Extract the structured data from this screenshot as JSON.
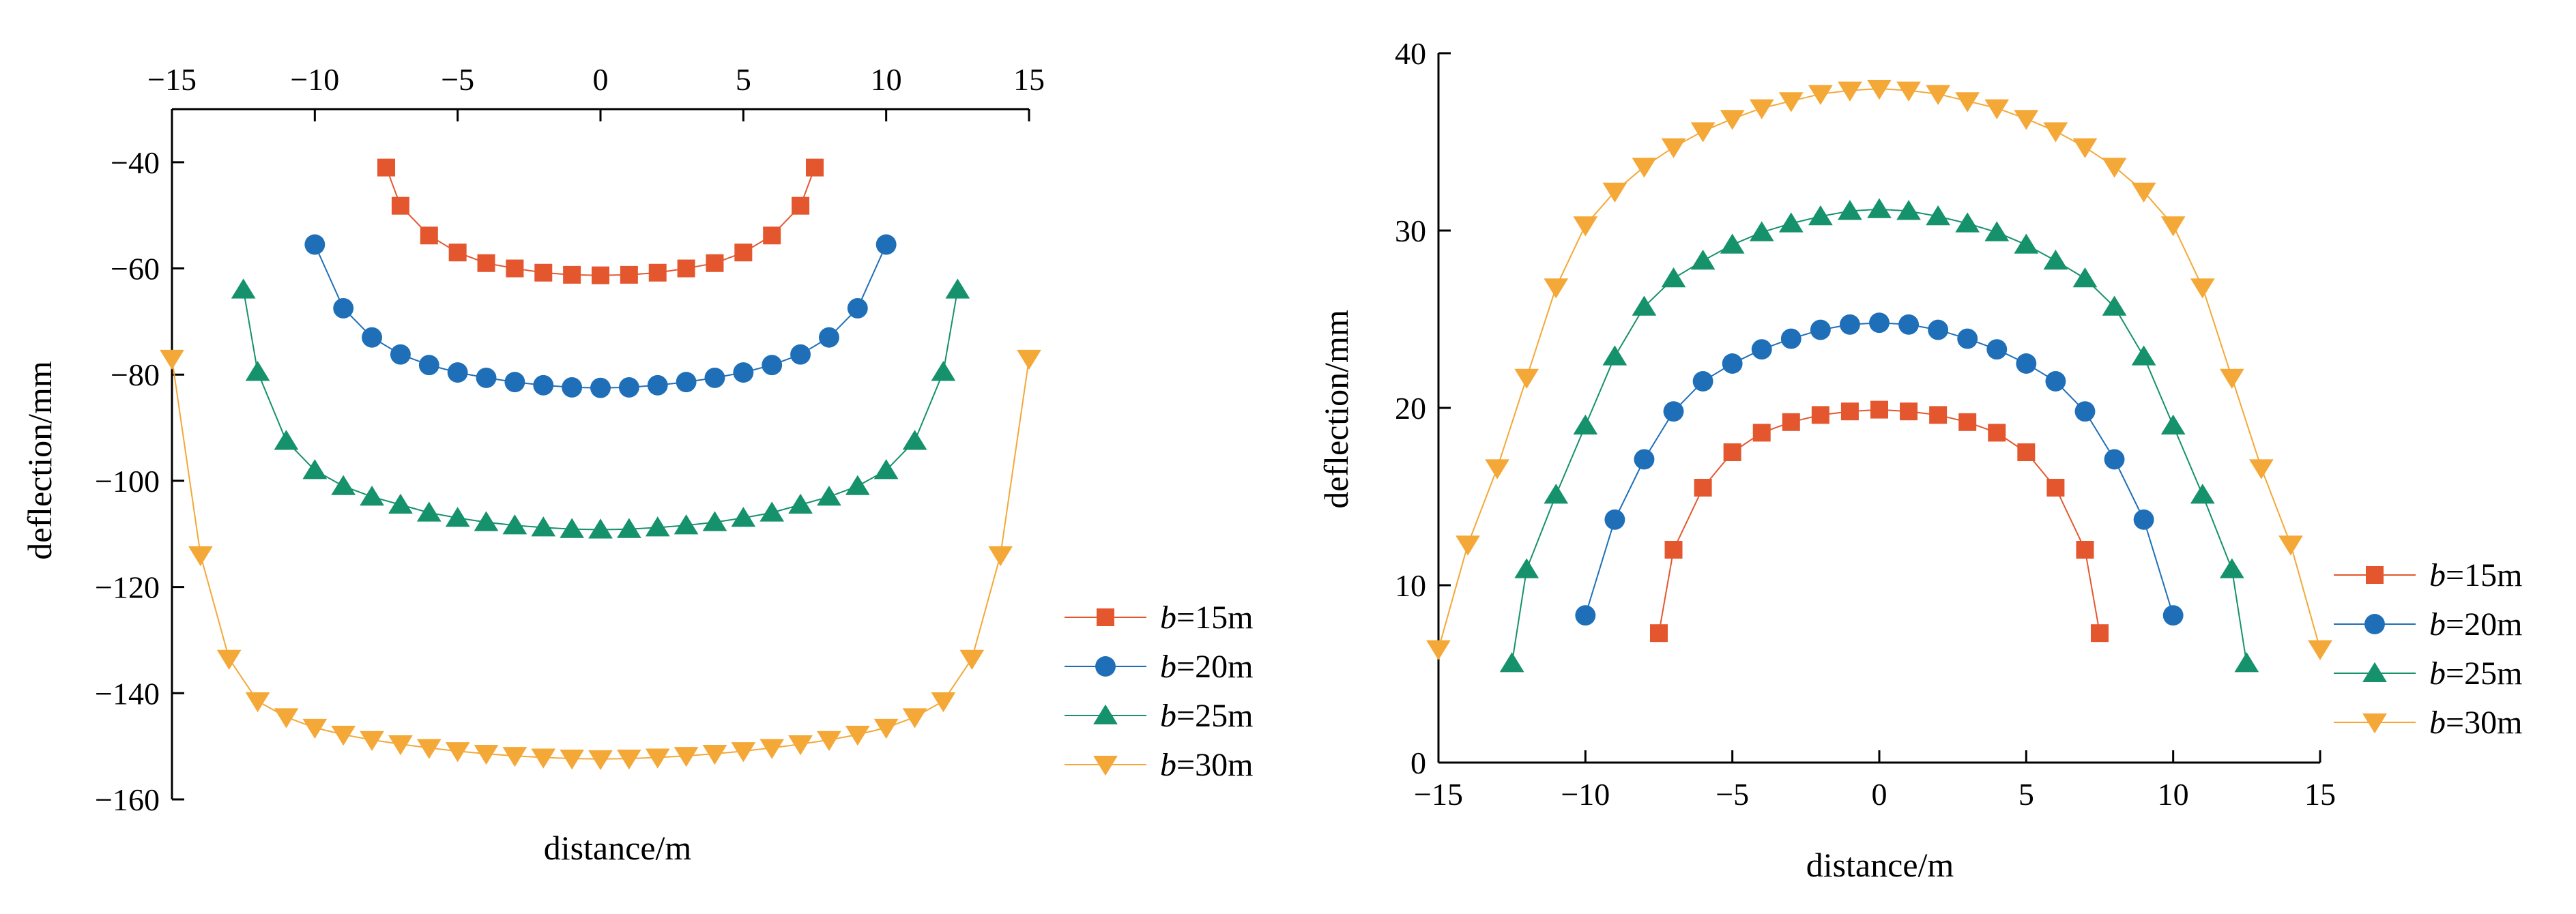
{
  "colors": {
    "b15": "#E4572E",
    "b20": "#1F6FB8",
    "b25": "#15916B",
    "b30": "#F4A837"
  },
  "chart_data": [
    {
      "type": "line",
      "id": "left",
      "title": "",
      "xlabel": "distance/m",
      "ylabel": "deflection/mm",
      "x_axis_position": "top",
      "xlim": [
        -15,
        15
      ],
      "ylim": [
        -160,
        -30
      ],
      "xticks": [
        "−15",
        "−10",
        "−5",
        "0",
        "5",
        "10",
        "15"
      ],
      "xtick_values": [
        -15,
        -10,
        -5,
        0,
        5,
        10,
        15
      ],
      "yticks": [
        "−40",
        "−60",
        "−80",
        "−100",
        "−120",
        "−140",
        "−160"
      ],
      "ytick_values": [
        -40,
        -60,
        -80,
        -100,
        -120,
        -140,
        -160
      ],
      "legend_position": "right",
      "series": [
        {
          "name": "b=15m",
          "label_italic": "b",
          "label_rest": "=15m",
          "marker": "square",
          "color_key": "b15",
          "x": [
            -7.5,
            -7,
            -6,
            -5,
            -4,
            -3,
            -2,
            -1,
            0,
            1,
            2,
            3,
            4,
            5,
            6,
            7,
            7.5
          ],
          "values": [
            -41,
            -48.2,
            -53.8,
            -57,
            -59,
            -60,
            -60.8,
            -61.2,
            -61.3,
            -61.2,
            -60.8,
            -60,
            -59,
            -57,
            -53.8,
            -48.2,
            -41
          ]
        },
        {
          "name": "b=20m",
          "label_italic": "b",
          "label_rest": "=20m",
          "marker": "circle",
          "color_key": "b20",
          "x": [
            -10,
            -9,
            -8,
            -7,
            -6,
            -5,
            -4,
            -3,
            -2,
            -1,
            0,
            1,
            2,
            3,
            4,
            5,
            6,
            7,
            8,
            9,
            10
          ],
          "values": [
            -55.5,
            -67.5,
            -73,
            -76.2,
            -78.2,
            -79.6,
            -80.6,
            -81.4,
            -82,
            -82.4,
            -82.5,
            -82.4,
            -82,
            -81.4,
            -80.6,
            -79.6,
            -78.2,
            -76.2,
            -73,
            -67.5,
            -55.5
          ]
        },
        {
          "name": "b=25m",
          "label_italic": "b",
          "label_rest": "=25m",
          "marker": "triangle-up",
          "color_key": "b25",
          "x": [
            -12.5,
            -12,
            -11,
            -10,
            -9,
            -8,
            -7,
            -6,
            -5,
            -4,
            -3,
            -2,
            -1,
            0,
            1,
            2,
            3,
            4,
            5,
            6,
            7,
            8,
            9,
            10,
            11,
            12,
            12.5
          ],
          "values": [
            -64,
            -79.5,
            -92.5,
            -98,
            -101,
            -103,
            -104.5,
            -106,
            -107,
            -107.8,
            -108.4,
            -108.8,
            -109.1,
            -109.2,
            -109.1,
            -108.8,
            -108.4,
            -107.8,
            -107,
            -106,
            -104.5,
            -103,
            -101,
            -98,
            -92.5,
            -79.5,
            -64
          ]
        },
        {
          "name": "b=30m",
          "label_italic": "b",
          "label_rest": "=30m",
          "marker": "triangle-down",
          "color_key": "b30",
          "x": [
            -15,
            -14,
            -13,
            -12,
            -11,
            -10,
            -9,
            -8,
            -7,
            -6,
            -5,
            -4,
            -3,
            -2,
            -1,
            0,
            1,
            2,
            3,
            4,
            5,
            6,
            7,
            8,
            9,
            10,
            11,
            12,
            13,
            14,
            15
          ],
          "values": [
            -77,
            -114,
            -133.5,
            -141.5,
            -144.5,
            -146.5,
            -147.8,
            -148.8,
            -149.6,
            -150.3,
            -150.9,
            -151.4,
            -151.8,
            -152.1,
            -152.3,
            -152.4,
            -152.3,
            -152.1,
            -151.8,
            -151.4,
            -150.9,
            -150.3,
            -149.6,
            -148.8,
            -147.8,
            -146.5,
            -144.5,
            -141.5,
            -133.5,
            -114,
            -77
          ]
        }
      ]
    },
    {
      "type": "line",
      "id": "right",
      "title": "",
      "xlabel": "distance/m",
      "ylabel": "deflection/mm",
      "x_axis_position": "bottom",
      "xlim": [
        -15,
        15
      ],
      "ylim": [
        0,
        40
      ],
      "xticks": [
        "−15",
        "−10",
        "−5",
        "0",
        "5",
        "10",
        "15"
      ],
      "xtick_values": [
        -15,
        -10,
        -5,
        0,
        5,
        10,
        15
      ],
      "yticks": [
        "0",
        "10",
        "20",
        "30",
        "40"
      ],
      "ytick_values": [
        0,
        10,
        20,
        30,
        40
      ],
      "legend_position": "bottom-right",
      "series": [
        {
          "name": "b=15m",
          "label_italic": "b",
          "label_rest": "=15m",
          "marker": "square",
          "color_key": "b15",
          "x": [
            -7.5,
            -7,
            -6,
            -5,
            -4,
            -3,
            -2,
            -1,
            0,
            1,
            2,
            3,
            4,
            5,
            6,
            7,
            7.5
          ],
          "values": [
            7.3,
            12,
            15.5,
            17.5,
            18.6,
            19.2,
            19.6,
            19.8,
            19.9,
            19.8,
            19.6,
            19.2,
            18.6,
            17.5,
            15.5,
            12,
            7.3
          ]
        },
        {
          "name": "b=20m",
          "label_italic": "b",
          "label_rest": "=20m",
          "marker": "circle",
          "color_key": "b20",
          "x": [
            -10,
            -9,
            -8,
            -7,
            -6,
            -5,
            -4,
            -3,
            -2,
            -1,
            0,
            1,
            2,
            3,
            4,
            5,
            6,
            7,
            8,
            9,
            10
          ],
          "values": [
            8.3,
            13.7,
            17.1,
            19.8,
            21.5,
            22.5,
            23.3,
            23.9,
            24.4,
            24.7,
            24.8,
            24.7,
            24.4,
            23.9,
            23.3,
            22.5,
            21.5,
            19.8,
            17.1,
            13.7,
            8.3
          ]
        },
        {
          "name": "b=25m",
          "label_italic": "b",
          "label_rest": "=25m",
          "marker": "triangle-up",
          "color_key": "b25",
          "x": [
            -12.5,
            -12,
            -11,
            -10,
            -9,
            -8,
            -7,
            -6,
            -5,
            -4,
            -3,
            -2,
            -1,
            0,
            1,
            2,
            3,
            4,
            5,
            6,
            7,
            8,
            9,
            10,
            11,
            12,
            12.5
          ],
          "values": [
            5.6,
            10.9,
            15.1,
            19,
            22.9,
            25.7,
            27.3,
            28.3,
            29.2,
            29.9,
            30.4,
            30.8,
            31.1,
            31.2,
            31.1,
            30.8,
            30.4,
            29.9,
            29.2,
            28.3,
            27.3,
            25.7,
            22.9,
            19,
            15.1,
            10.9,
            5.6
          ]
        },
        {
          "name": "b=30m",
          "label_italic": "b",
          "label_rest": "=30m",
          "marker": "triangle-down",
          "color_key": "b30",
          "x": [
            -15,
            -14,
            -13,
            -12,
            -11,
            -10,
            -9,
            -8,
            -7,
            -6,
            -5,
            -4,
            -3,
            -2,
            -1,
            0,
            1,
            2,
            3,
            4,
            5,
            6,
            7,
            8,
            9,
            10,
            11,
            12,
            13,
            14,
            15
          ],
          "values": [
            6.4,
            12.3,
            16.6,
            21.7,
            26.8,
            30.3,
            32.2,
            33.6,
            34.7,
            35.6,
            36.3,
            36.9,
            37.3,
            37.7,
            37.9,
            38,
            37.9,
            37.7,
            37.3,
            36.9,
            36.3,
            35.6,
            34.7,
            33.6,
            32.2,
            30.3,
            26.8,
            21.7,
            16.6,
            12.3,
            6.4
          ]
        }
      ]
    }
  ]
}
